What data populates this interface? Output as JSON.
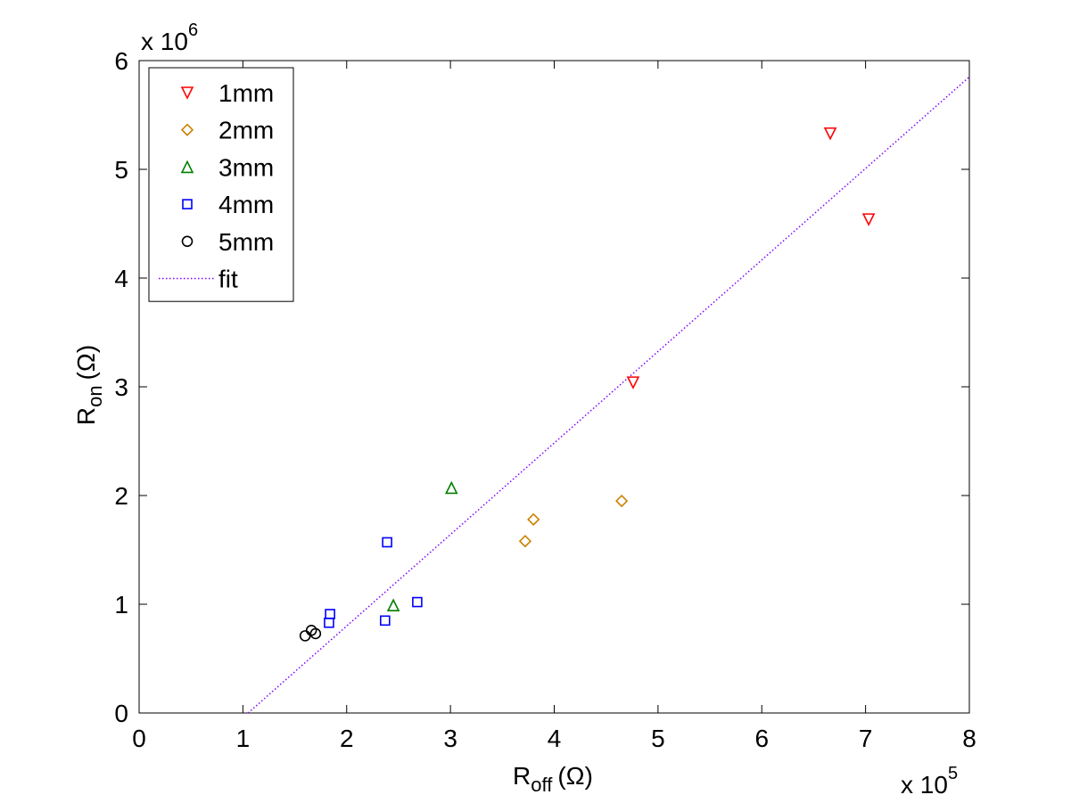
{
  "chart_data": {
    "type": "scatter",
    "title": "",
    "xlabel": {
      "base": "R",
      "sub": "off",
      "unit": "(Ω)"
    },
    "ylabel": {
      "base": "R",
      "sub": "on",
      "unit": "(Ω)"
    },
    "x_multiplier": {
      "prefix": "x 10",
      "exp": "5"
    },
    "y_multiplier": {
      "prefix": "x 10",
      "exp": "6"
    },
    "xlim": [
      0,
      8
    ],
    "ylim": [
      0,
      6
    ],
    "xticks": [
      0,
      1,
      2,
      3,
      4,
      5,
      6,
      7,
      8
    ],
    "yticks": [
      0,
      1,
      2,
      3,
      4,
      5,
      6
    ],
    "grid": false,
    "legend_position": "top-left",
    "series": [
      {
        "name": "1mm",
        "marker": "triangle-down",
        "color": "#ff0000",
        "x": [
          4.76,
          6.66,
          7.03
        ],
        "y": [
          3.04,
          5.33,
          4.54
        ]
      },
      {
        "name": "2mm",
        "marker": "diamond",
        "color": "#cc8000",
        "x": [
          3.72,
          3.8,
          4.65
        ],
        "y": [
          1.58,
          1.78,
          1.95
        ]
      },
      {
        "name": "3mm",
        "marker": "triangle-up",
        "color": "#008000",
        "x": [
          2.45,
          3.01
        ],
        "y": [
          0.99,
          2.07
        ]
      },
      {
        "name": "4mm",
        "marker": "square",
        "color": "#0000ff",
        "x": [
          1.83,
          1.84,
          2.37,
          2.39,
          2.68
        ],
        "y": [
          0.83,
          0.91,
          0.85,
          1.57,
          1.02
        ]
      },
      {
        "name": "5mm",
        "marker": "circle",
        "color": "#000000",
        "x": [
          1.6,
          1.66,
          1.7
        ],
        "y": [
          0.71,
          0.76,
          0.73
        ]
      }
    ],
    "fit": {
      "name": "fit",
      "color": "#8000ff",
      "style": "dotted",
      "x": [
        1.05,
        8.0
      ],
      "y": [
        0.0,
        5.85
      ]
    }
  }
}
